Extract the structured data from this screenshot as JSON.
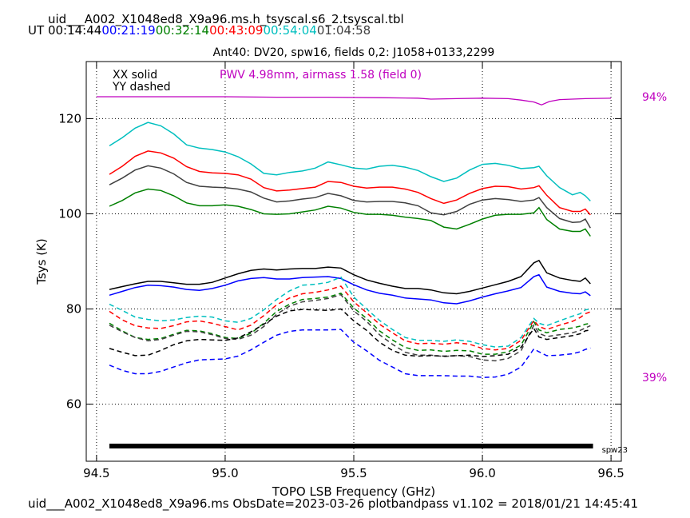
{
  "header": {
    "filename": "uid___A002_X1048ed8_X9a96.ms.h_tsyscal.s6_2.tsyscal.tbl",
    "ut_label": "UT",
    "ut_times": [
      {
        "text": "00:14:44",
        "color": "#000000"
      },
      {
        "text": "00:21:19",
        "color": "#0000ff"
      },
      {
        "text": "00:32:14",
        "color": "#008000"
      },
      {
        "text": "00:43:09",
        "color": "#ff0000"
      },
      {
        "text": "00:54:04",
        "color": "#00bfbf"
      },
      {
        "text": "01:04:58",
        "color": "#404040"
      }
    ]
  },
  "footer": "uid___A002_X1048ed8_X9a96.ms  ObsDate=2023-03-26   plotbandpass v1.102 = 2018/01/21 14:45:41",
  "chart_data": {
    "type": "line",
    "title": "Ant40: DV20,  spw16,  fields 0,2: J1058+0133,2299",
    "xlabel": "TOPO LSB Frequency (GHz)",
    "ylabel": "Tsys (K)",
    "xlim": [
      94.46,
      96.54
    ],
    "ylim": [
      48,
      132
    ],
    "xticks": [
      94.5,
      95.0,
      95.5,
      96.0,
      96.5
    ],
    "xtick_labels": [
      "94.5",
      "95.0",
      "95.5",
      "96.0",
      "96.5"
    ],
    "yticks": [
      60,
      80,
      100,
      120
    ],
    "ytick_labels": [
      "60",
      "80",
      "100",
      "120"
    ],
    "grid": true,
    "legend": {
      "solid_text": "XX solid",
      "dashed_text": "YY dashed"
    },
    "pwv_annotation": {
      "text": "PWV 4.98mm, airmass 1.58 (field 0)",
      "color": "#bf00bf"
    },
    "right_labels": [
      {
        "text": "94%",
        "color": "#bf00bf"
      },
      {
        "text": "39%",
        "color": "#bf00bf"
      }
    ],
    "spw_bar": {
      "label": "spw23",
      "x_start": 94.55,
      "x_end": 96.43,
      "y": 51.2
    },
    "x": [
      94.55,
      94.6,
      94.65,
      94.7,
      94.75,
      94.8,
      94.85,
      94.9,
      94.95,
      95.0,
      95.05,
      95.1,
      95.15,
      95.2,
      95.25,
      95.3,
      95.35,
      95.4,
      95.45,
      95.5,
      95.55,
      95.6,
      95.65,
      95.7,
      95.75,
      95.8,
      95.85,
      95.9,
      95.95,
      96.0,
      96.05,
      96.1,
      96.15,
      96.2,
      96.22,
      96.25,
      96.3,
      96.35,
      96.38,
      96.4,
      96.42
    ],
    "transmission": {
      "name": "atmospheric transmission",
      "color": "#bf00bf",
      "x": [
        94.5,
        94.8,
        95.0,
        95.2,
        95.4,
        95.6,
        95.75,
        95.8,
        95.9,
        96.0,
        96.1,
        96.15,
        96.2,
        96.23,
        96.26,
        96.3,
        96.4,
        96.5
      ],
      "y": [
        124.6,
        124.6,
        124.6,
        124.5,
        124.5,
        124.4,
        124.3,
        124.1,
        124.2,
        124.3,
        124.2,
        123.9,
        123.5,
        122.9,
        123.6,
        124.0,
        124.2,
        124.3
      ]
    },
    "series": [
      {
        "color": "#00bfbf",
        "dash": false,
        "values": [
          114.3,
          116.0,
          118.0,
          119.2,
          118.5,
          116.8,
          114.5,
          113.8,
          113.5,
          113.0,
          112.0,
          110.5,
          108.5,
          108.2,
          108.7,
          109.0,
          109.6,
          110.9,
          110.3,
          109.6,
          109.4,
          110.0,
          110.2,
          109.8,
          109.1,
          107.8,
          106.8,
          107.5,
          109.2,
          110.4,
          110.6,
          110.2,
          109.5,
          109.7,
          110.0,
          108.0,
          105.5,
          104.0,
          104.5,
          103.8,
          102.7
        ]
      },
      {
        "color": "#ff0000",
        "dash": false,
        "values": [
          108.3,
          110.0,
          112.1,
          113.2,
          112.8,
          111.7,
          109.9,
          108.9,
          108.6,
          108.5,
          108.2,
          107.3,
          105.5,
          104.8,
          105.0,
          105.3,
          105.6,
          106.8,
          106.6,
          105.8,
          105.4,
          105.6,
          105.6,
          105.2,
          104.5,
          103.2,
          102.2,
          102.9,
          104.3,
          105.3,
          105.8,
          105.7,
          105.2,
          105.5,
          105.9,
          103.9,
          101.3,
          100.5,
          100.5,
          101.0,
          99.8
        ]
      },
      {
        "color": "#404040",
        "dash": false,
        "values": [
          106.1,
          107.5,
          109.2,
          110.1,
          109.6,
          108.4,
          106.6,
          105.8,
          105.6,
          105.5,
          105.2,
          104.6,
          103.3,
          102.5,
          102.7,
          103.1,
          103.4,
          104.3,
          103.8,
          102.8,
          102.5,
          102.6,
          102.6,
          102.3,
          101.7,
          100.2,
          99.8,
          100.5,
          102.0,
          102.9,
          103.2,
          103.0,
          102.6,
          102.9,
          103.4,
          101.3,
          99.0,
          98.2,
          98.3,
          98.9,
          97.0
        ]
      },
      {
        "color": "#008000",
        "dash": false,
        "values": [
          101.6,
          102.8,
          104.4,
          105.2,
          104.9,
          103.8,
          102.3,
          101.7,
          101.7,
          101.9,
          101.6,
          100.9,
          100.0,
          99.9,
          100.0,
          100.4,
          100.8,
          101.6,
          101.2,
          100.3,
          99.9,
          99.9,
          99.7,
          99.3,
          99.0,
          98.6,
          97.2,
          96.8,
          97.8,
          98.9,
          99.7,
          99.9,
          99.9,
          100.2,
          101.3,
          98.8,
          96.8,
          96.3,
          96.3,
          96.8,
          95.3
        ]
      },
      {
        "color": "#000000",
        "dash": false,
        "values": [
          84.1,
          84.7,
          85.3,
          85.8,
          85.8,
          85.5,
          85.2,
          85.2,
          85.6,
          86.5,
          87.4,
          88.1,
          88.4,
          88.2,
          88.4,
          88.5,
          88.5,
          88.8,
          88.6,
          87.2,
          86.1,
          85.4,
          84.8,
          84.3,
          84.3,
          84.0,
          83.4,
          83.2,
          83.7,
          84.4,
          85.1,
          85.8,
          86.8,
          89.7,
          90.2,
          87.6,
          86.5,
          86.0,
          85.8,
          86.5,
          85.3
        ]
      },
      {
        "color": "#0000ff",
        "dash": false,
        "values": [
          82.9,
          83.7,
          84.5,
          85.0,
          84.9,
          84.6,
          84.1,
          83.9,
          84.3,
          85.0,
          85.9,
          86.4,
          86.6,
          86.3,
          86.3,
          86.6,
          86.7,
          86.8,
          86.4,
          85.1,
          84.0,
          83.3,
          82.9,
          82.3,
          82.1,
          81.9,
          81.3,
          81.1,
          81.7,
          82.5,
          83.2,
          83.8,
          84.5,
          86.8,
          87.2,
          84.6,
          83.7,
          83.3,
          83.2,
          83.6,
          82.8
        ]
      },
      {
        "color": "#00bfbf",
        "dash": true,
        "values": [
          81.0,
          79.7,
          78.3,
          77.8,
          77.5,
          77.7,
          78.2,
          78.5,
          78.3,
          77.5,
          77.2,
          78.0,
          79.8,
          82.0,
          83.8,
          85.0,
          85.2,
          85.6,
          86.7,
          82.5,
          80.0,
          77.6,
          75.7,
          74.0,
          73.4,
          73.4,
          73.2,
          73.5,
          73.2,
          72.5,
          72.0,
          72.2,
          74.0,
          78.0,
          77.0,
          76.5,
          77.5,
          78.5,
          79.0,
          79.8,
          80.0
        ]
      },
      {
        "color": "#ff0000",
        "dash": true,
        "values": [
          79.5,
          77.7,
          76.5,
          76.0,
          75.9,
          76.5,
          77.3,
          77.5,
          77.0,
          76.3,
          75.6,
          76.6,
          78.6,
          80.9,
          82.3,
          83.2,
          83.5,
          84.0,
          84.8,
          81.5,
          79.2,
          76.8,
          75.0,
          73.3,
          72.7,
          72.8,
          72.6,
          72.9,
          72.6,
          71.7,
          71.4,
          71.7,
          73.4,
          77.6,
          76.3,
          75.7,
          76.6,
          77.4,
          78.2,
          79.0,
          79.4
        ]
      },
      {
        "color": "#008000",
        "dash": true,
        "values": [
          77.0,
          75.4,
          74.0,
          73.6,
          73.8,
          74.7,
          75.5,
          75.4,
          74.8,
          74.0,
          73.8,
          74.9,
          77.0,
          79.5,
          81.0,
          82.0,
          82.2,
          82.5,
          83.3,
          80.2,
          78.0,
          75.4,
          73.5,
          71.9,
          71.3,
          71.4,
          71.1,
          71.3,
          71.2,
          70.5,
          70.5,
          71.0,
          72.4,
          77.3,
          75.6,
          75.0,
          75.7,
          76.0,
          76.4,
          76.8,
          77.0
        ]
      },
      {
        "color": "#404040",
        "dash": true,
        "values": [
          76.6,
          75.2,
          74.0,
          73.3,
          73.6,
          74.5,
          75.3,
          75.2,
          74.6,
          73.8,
          73.6,
          74.5,
          76.3,
          78.9,
          80.6,
          81.5,
          81.8,
          82.2,
          83.0,
          79.6,
          77.4,
          74.6,
          72.6,
          70.9,
          70.3,
          70.3,
          70.0,
          70.2,
          70.0,
          69.3,
          69.1,
          69.6,
          71.2,
          76.6,
          74.9,
          74.2,
          74.6,
          75.0,
          75.5,
          76.0,
          76.5
        ]
      },
      {
        "color": "#000000",
        "dash": true,
        "values": [
          71.7,
          70.9,
          70.2,
          70.3,
          71.3,
          72.5,
          73.3,
          73.6,
          73.5,
          73.4,
          73.9,
          75.2,
          76.8,
          78.5,
          79.6,
          79.9,
          79.8,
          79.7,
          80.0,
          77.5,
          75.5,
          73.0,
          71.3,
          70.3,
          70.1,
          70.2,
          70.1,
          70.2,
          70.3,
          70.0,
          70.2,
          70.5,
          71.9,
          75.9,
          74.1,
          73.6,
          74.0,
          74.4,
          74.8,
          75.4,
          75.6
        ]
      },
      {
        "color": "#0000ff",
        "dash": true,
        "values": [
          68.2,
          67.1,
          66.4,
          66.4,
          66.9,
          67.8,
          68.7,
          69.3,
          69.4,
          69.5,
          70.1,
          71.4,
          73.0,
          74.5,
          75.3,
          75.6,
          75.6,
          75.6,
          75.7,
          73.0,
          71.2,
          69.2,
          67.8,
          66.4,
          66.0,
          66.0,
          66.0,
          65.9,
          65.9,
          65.6,
          65.7,
          66.3,
          67.8,
          71.6,
          71.0,
          70.2,
          70.3,
          70.6,
          71.0,
          71.5,
          71.8
        ]
      }
    ]
  }
}
